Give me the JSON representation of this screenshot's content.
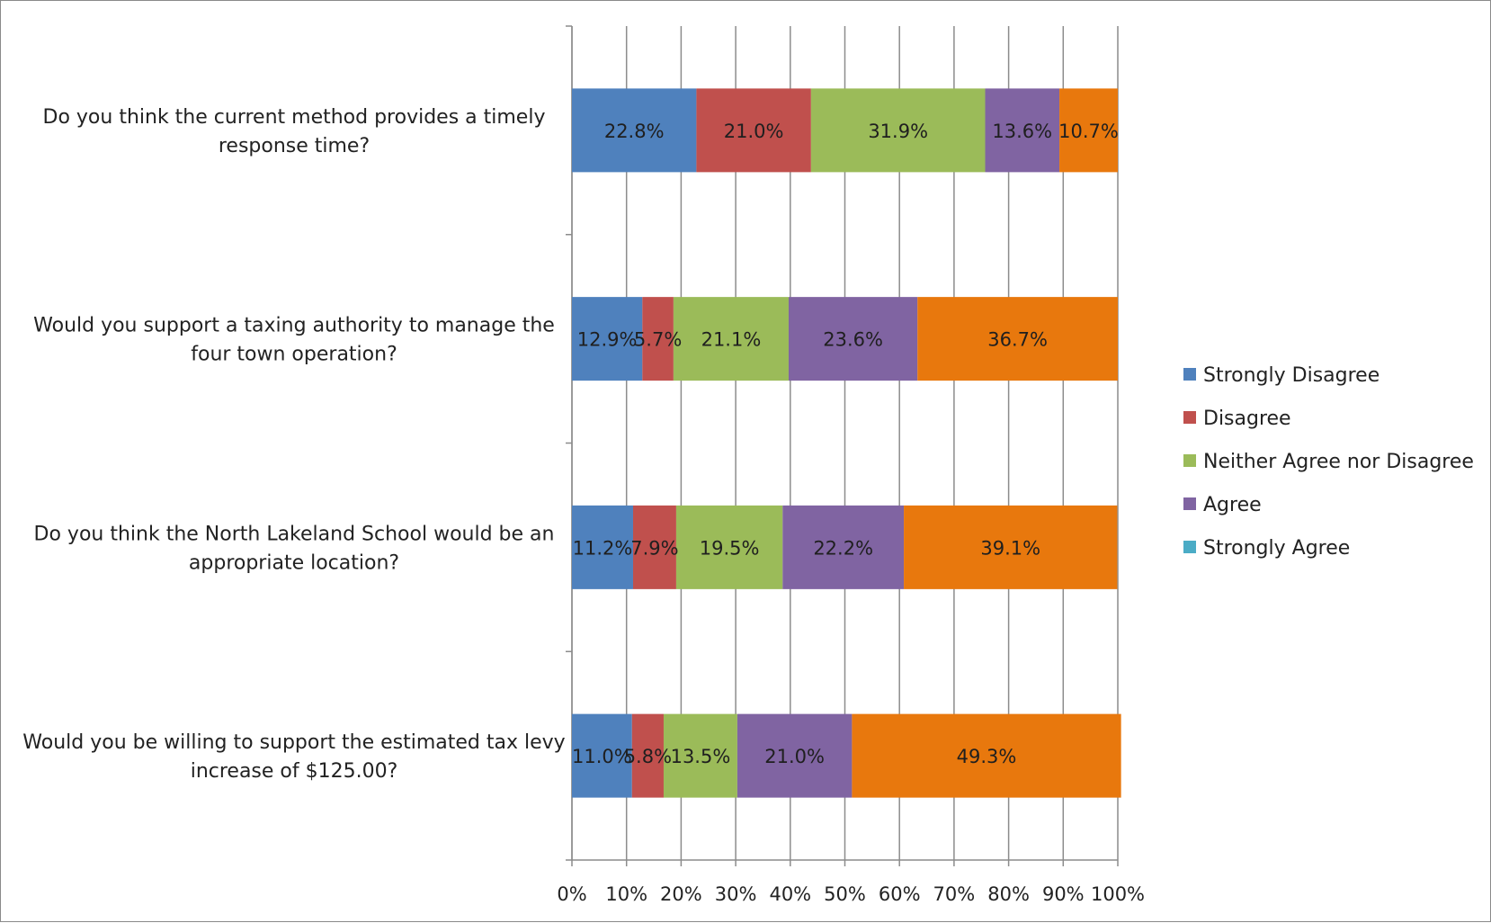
{
  "chart_data": {
    "type": "bar",
    "orientation": "horizontal",
    "stacked": "percent",
    "categories": [
      [
        "Do you think the current method provides a timely",
        "response time?"
      ],
      [
        "Would you support a taxing authority to manage the",
        "four town operation?"
      ],
      [
        "Do you think the North Lakeland School would be an",
        "appropriate location?"
      ],
      [
        "Would you be willing to support the estimated tax levy",
        "increase of $125.00?"
      ]
    ],
    "series": [
      {
        "name": "Strongly Disagree",
        "color": "#4f81bd",
        "values": [
          22.8,
          12.9,
          11.2,
          11.0
        ],
        "labels": [
          "22.8%",
          "12.9%",
          "11.2%",
          "11.0%"
        ]
      },
      {
        "name": "Disagree",
        "color": "#c0504d",
        "values": [
          21.0,
          5.7,
          7.9,
          5.8
        ],
        "labels": [
          "21.0%",
          "5.7%",
          "7.9%",
          "5.8%"
        ]
      },
      {
        "name": "Neither Agree nor Disagree",
        "color": "#9bbb59",
        "values": [
          31.9,
          21.1,
          19.5,
          13.5
        ],
        "labels": [
          "31.9%",
          "21.1%",
          "19.5%",
          "13.5%"
        ]
      },
      {
        "name": "Agree",
        "color": "#8064a2",
        "values": [
          13.6,
          23.6,
          22.2,
          21.0
        ],
        "labels": [
          "13.6%",
          "23.6%",
          "22.2%",
          "21.0%"
        ]
      },
      {
        "name": "",
        "color": "#e8780d",
        "values": [
          10.7,
          36.7,
          39.1,
          49.3
        ],
        "labels": [
          "10.7%",
          "36.7%",
          "39.1%",
          "49.3%"
        ]
      }
    ],
    "legend": [
      {
        "name": "Strongly Disagree",
        "color": "#4f81bd"
      },
      {
        "name": "Disagree",
        "color": "#c0504d"
      },
      {
        "name": "Neither Agree nor Disagree",
        "color": "#9bbb59"
      },
      {
        "name": "Agree",
        "color": "#8064a2"
      },
      {
        "name": "Strongly Agree",
        "color": "#4bacc6"
      }
    ],
    "x_ticks": [
      "0%",
      "10%",
      "20%",
      "30%",
      "40%",
      "50%",
      "60%",
      "70%",
      "80%",
      "90%",
      "100%"
    ],
    "xlim": [
      0,
      100
    ],
    "grid": "vertical",
    "legend_position": "right"
  }
}
